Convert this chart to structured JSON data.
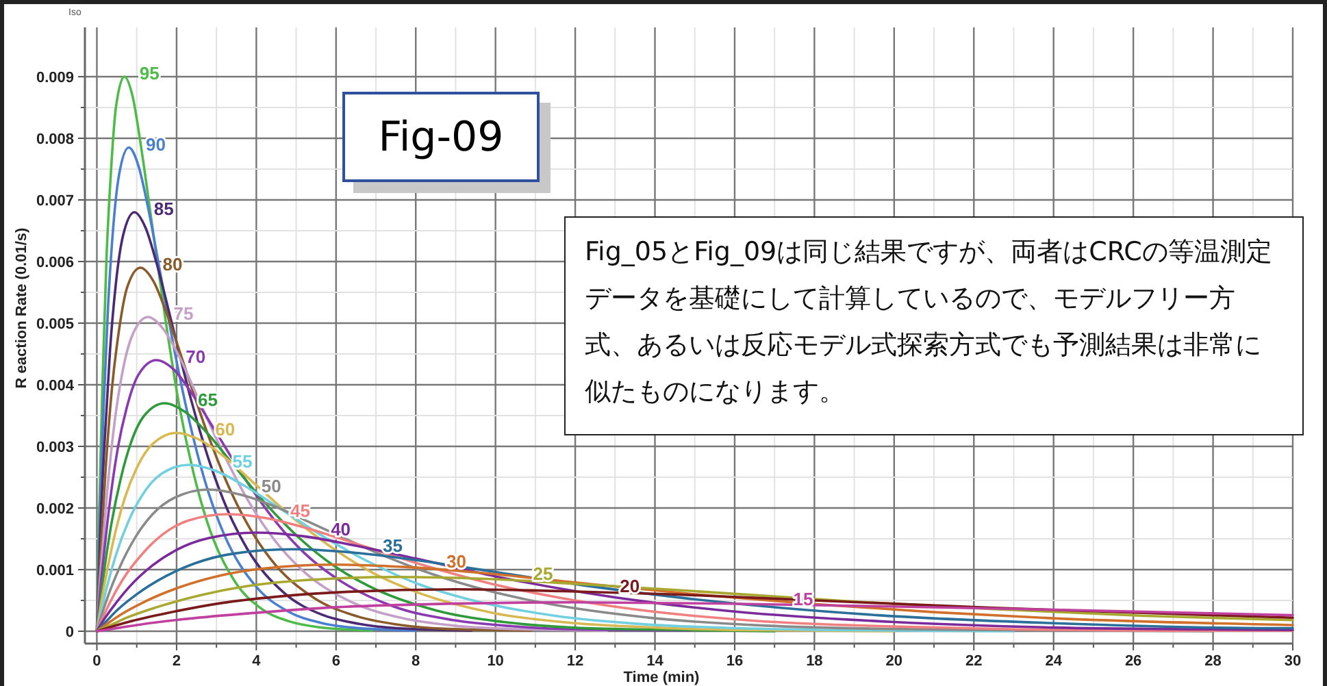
{
  "chart_data": {
    "type": "line",
    "xlabel": "Time (min)",
    "ylabel": "R eaction Rate (0.01/s)",
    "grid": true,
    "annotations": [
      "Iso",
      "Fig-09",
      "Fig_05とFig_09は同じ結果ですが、両者はCRCの等温測定データを基礎にして計算しているので、モデルフリー方式、あるいは反応モデル式探索方式でも予測結果は非常に似たものになります。"
    ],
    "xlim": [
      -0.3,
      30
    ],
    "ylim": [
      -0.0002,
      0.0098
    ],
    "xticks": [
      0,
      {
        "value": 1,
        "label": null
      },
      2,
      {
        "value": 3,
        "label": null
      },
      4,
      {
        "value": 5,
        "label": null
      },
      6,
      {
        "value": 7,
        "label": null
      },
      8,
      {
        "value": 9,
        "label": null
      },
      10,
      {
        "value": 11,
        "label": null
      },
      12,
      {
        "value": 13,
        "label": null
      },
      14,
      {
        "value": 15,
        "label": null
      },
      16,
      {
        "value": 17,
        "label": null
      },
      18,
      {
        "value": 19,
        "label": null
      },
      20,
      {
        "value": 21,
        "label": null
      },
      22,
      {
        "value": 23,
        "label": null
      },
      24,
      {
        "value": 25,
        "label": null
      },
      26,
      {
        "value": 27,
        "label": null
      },
      28,
      {
        "value": 29,
        "label": null
      },
      30
    ],
    "yticks": [
      0,
      {
        "value": 0.0005,
        "label": null
      },
      0.001,
      {
        "value": 0.0015,
        "label": null
      },
      0.002,
      {
        "value": 0.0025,
        "label": null
      },
      0.003,
      {
        "value": 0.0035,
        "label": null
      },
      0.004,
      {
        "value": 0.0045,
        "label": null
      },
      0.005,
      {
        "value": 0.0055,
        "label": null
      },
      0.006,
      {
        "value": 0.0065,
        "label": null
      },
      0.007,
      {
        "value": 0.0075,
        "label": null
      },
      0.008,
      {
        "value": 0.0085,
        "label": null
      },
      0.009
    ],
    "series": [
      {
        "name": "95",
        "color": "#4cbb47",
        "x": [
          0,
          0.03,
          0.07,
          0.14,
          0.24,
          0.35,
          0.48,
          0.69,
          0.9,
          1.1,
          1.38,
          1.73,
          2.07,
          2.42,
          2.76,
          3.45,
          4.14,
          4.83,
          5.52,
          6.9
        ],
        "values": [
          0,
          0.00116,
          0.00221,
          0.00401,
          0.00603,
          0.00742,
          0.00851,
          0.009,
          0.00867,
          0.0079,
          0.00662,
          0.00502,
          0.00365,
          0.00258,
          0.00179,
          0.00082,
          0.00036,
          0.00016,
          7e-05,
          1e-05
        ]
      },
      {
        "name": "90",
        "color": "#4a7fd0",
        "x": [
          0,
          0.04,
          0.08,
          0.16,
          0.28,
          0.4,
          0.56,
          0.8,
          1.04,
          1.28,
          1.6,
          2,
          2.4,
          2.8,
          3.2,
          4,
          4.8,
          5.6,
          6.4,
          8
        ],
        "values": [
          0,
          0.00101,
          0.00193,
          0.00349,
          0.00526,
          0.00647,
          0.00742,
          0.00785,
          0.00756,
          0.00689,
          0.00578,
          0.00438,
          0.00319,
          0.00225,
          0.00156,
          0.00072,
          0.00032,
          0.00014,
          6e-05,
          1e-05
        ]
      },
      {
        "name": "85",
        "color": "#4b2a73",
        "x": [
          0,
          0.05,
          0.09,
          0.19,
          0.33,
          0.47,
          0.66,
          0.94,
          1.22,
          1.5,
          1.88,
          2.35,
          2.82,
          3.29,
          3.76,
          4.7,
          5.64,
          6.58,
          7.52,
          9.4
        ],
        "values": [
          0,
          0.00088,
          0.00167,
          0.00303,
          0.00456,
          0.0056,
          0.00643,
          0.0068,
          0.00655,
          0.00597,
          0.005,
          0.00379,
          0.00276,
          0.00195,
          0.00135,
          0.00062,
          0.00027,
          0.00012,
          5e-05,
          1e-05
        ]
      },
      {
        "name": "80",
        "color": "#8b5a2b",
        "x": [
          0,
          0.05,
          0.11,
          0.22,
          0.38,
          0.55,
          0.76,
          1.09,
          1.42,
          1.74,
          2.18,
          2.73,
          3.27,
          3.82,
          4.36,
          5.45,
          6.54,
          7.63,
          8.72,
          10.9
        ],
        "values": [
          0,
          0.00076,
          0.00145,
          0.00263,
          0.00395,
          0.00486,
          0.00558,
          0.0059,
          0.00568,
          0.00518,
          0.00434,
          0.00329,
          0.0024,
          0.00169,
          0.00117,
          0.00054,
          0.00024,
          0.0001,
          4e-05,
          1e-05
        ]
      },
      {
        "name": "75",
        "color": "#c4a0c8",
        "x": [
          0,
          0.06,
          0.13,
          0.26,
          0.45,
          0.64,
          0.9,
          1.28,
          1.66,
          2.05,
          2.56,
          3.2,
          3.84,
          4.48,
          5.12,
          6.4,
          7.68,
          8.96,
          10.24,
          12.8
        ],
        "values": [
          0,
          0.00066,
          0.00125,
          0.00227,
          0.00342,
          0.0042,
          0.00482,
          0.0051,
          0.00491,
          0.00448,
          0.00375,
          0.00285,
          0.00207,
          0.00146,
          0.00101,
          0.00047,
          0.00021,
          9e-05,
          4e-05,
          1e-05
        ]
      },
      {
        "name": "70",
        "color": "#8a3ab0",
        "x": [
          0,
          0.07,
          0.15,
          0.3,
          0.52,
          0.75,
          1.04,
          1.49,
          1.94,
          2.38,
          2.98,
          3.73,
          4.47,
          5.22,
          5.96,
          7.45,
          8.94,
          10.43,
          11.92,
          14.9
        ],
        "values": [
          0,
          0.00057,
          0.00108,
          0.00196,
          0.00295,
          0.00363,
          0.00416,
          0.0044,
          0.00424,
          0.00386,
          0.00324,
          0.00246,
          0.00179,
          0.00126,
          0.00088,
          0.0004,
          0.00018,
          8e-05,
          3e-05,
          1e-05
        ]
      },
      {
        "name": "65",
        "color": "#2e9a3a",
        "x": [
          0,
          0.09,
          0.17,
          0.34,
          0.6,
          0.85,
          1.19,
          1.7,
          2.21,
          2.72,
          3.4,
          4.25,
          5.1,
          5.95,
          6.8,
          8.5,
          10.2,
          11.9,
          13.6,
          17
        ],
        "values": [
          0,
          0.00048,
          0.00091,
          0.00165,
          0.00248,
          0.00305,
          0.0035,
          0.0037,
          0.00356,
          0.00325,
          0.00272,
          0.00206,
          0.0015,
          0.00106,
          0.00074,
          0.00034,
          0.00015,
          6e-05,
          3e-05,
          0
        ]
      },
      {
        "name": "60",
        "color": "#d8b850",
        "x": [
          0,
          0.1,
          0.2,
          0.4,
          0.7,
          1,
          1.4,
          2,
          2.6,
          3.2,
          4,
          5,
          6,
          7,
          8,
          10,
          12,
          14,
          16,
          20
        ],
        "values": [
          0,
          0.00042,
          0.00079,
          0.00143,
          0.00216,
          0.00265,
          0.00304,
          0.00322,
          0.0031,
          0.00283,
          0.00237,
          0.0018,
          0.00131,
          0.00092,
          0.00064,
          0.00029,
          0.00013,
          6e-05,
          2e-05,
          0
        ]
      },
      {
        "name": "55",
        "color": "#70d0e0",
        "x": [
          0,
          0.12,
          0.23,
          0.46,
          0.81,
          1.15,
          1.61,
          2.3,
          2.99,
          3.68,
          4.6,
          5.75,
          6.9,
          8.05,
          9.2,
          11.5,
          13.8,
          16.1,
          18.4,
          23
        ],
        "values": [
          0,
          0.00035,
          0.00066,
          0.0012,
          0.00181,
          0.00222,
          0.00255,
          0.0027,
          0.0026,
          0.00237,
          0.00199,
          0.00151,
          0.0011,
          0.00077,
          0.00054,
          0.00025,
          0.00011,
          5e-05,
          2e-05,
          0
        ]
      },
      {
        "name": "50",
        "color": "#8a8a8a",
        "x": [
          0,
          0.14,
          0.28,
          0.56,
          0.98,
          1.4,
          1.96,
          2.8,
          3.64,
          4.48,
          5.6,
          7,
          8.4,
          9.8,
          11.2,
          14,
          16.8,
          19.6,
          22.4,
          28
        ],
        "values": [
          0,
          0.0003,
          0.00057,
          0.00102,
          0.00154,
          0.0019,
          0.00217,
          0.0023,
          0.00221,
          0.00202,
          0.00169,
          0.00128,
          0.00093,
          0.00066,
          0.00046,
          0.00021,
          9e-05,
          4e-05,
          2e-05,
          0
        ]
      },
      {
        "name": "45",
        "color": "#f08080",
        "x": [
          0,
          0.17,
          0.33,
          0.66,
          1.16,
          1.65,
          2.31,
          3.3,
          4.29,
          5.28,
          6.6,
          8.25,
          9.9,
          11.55,
          13.2,
          16.5,
          19.8,
          23.1,
          26.4,
          30
        ],
        "values": [
          0,
          0.00025,
          0.00047,
          0.00085,
          0.00127,
          0.00157,
          0.0018,
          0.0019,
          0.00183,
          0.00167,
          0.0014,
          0.00106,
          0.00077,
          0.00055,
          0.00038,
          0.00017,
          8e-05,
          3e-05,
          1e-05,
          1e-05
        ]
      },
      {
        "name": "40",
        "color": "#7a2a9a",
        "x": [
          0,
          0.2,
          0.4,
          0.8,
          1.4,
          2,
          2.8,
          4,
          5.2,
          6.4,
          8,
          10,
          12,
          14,
          16,
          20,
          24,
          28,
          30
        ],
        "values": [
          0,
          0.00021,
          0.00039,
          0.00071,
          0.00107,
          0.00132,
          0.00151,
          0.0016,
          0.00154,
          0.0014,
          0.00118,
          0.00089,
          0.00065,
          0.00046,
          0.00032,
          0.00015,
          6e-05,
          3e-05,
          2e-05
        ]
      },
      {
        "name": "35",
        "color": "#2a6e9a",
        "x": [
          0,
          0.25,
          0.49,
          0.98,
          1.72,
          2.45,
          3.43,
          4.9,
          6.37,
          7.84,
          9.8,
          12.25,
          14.7,
          17.15,
          19.6,
          24.5,
          29.4,
          30
        ],
        "values": [
          0,
          0.00017,
          0.00033,
          0.00059,
          0.00089,
          0.0011,
          0.00126,
          0.00133,
          0.00128,
          0.00117,
          0.00098,
          0.00074,
          0.00054,
          0.00038,
          0.00026,
          0.00012,
          5e-05,
          5e-05
        ]
      },
      {
        "name": "30",
        "color": "#d0702a",
        "x": [
          0,
          0.3,
          0.6,
          1.2,
          2.1,
          3,
          4.2,
          6,
          7.8,
          9.6,
          12,
          15,
          18,
          21,
          24,
          30
        ],
        "values": [
          0,
          0.00014,
          0.00027,
          0.00048,
          0.00072,
          0.00089,
          0.00102,
          0.00108,
          0.00104,
          0.00095,
          0.00079,
          0.0006,
          0.00044,
          0.00031,
          0.00021,
          0.0001
        ]
      },
      {
        "name": "25",
        "color": "#a8a830",
        "x": [
          0,
          0.38,
          0.75,
          1.5,
          2.63,
          3.75,
          5.25,
          7.5,
          9.75,
          12,
          15,
          18.75,
          22.5,
          26.25,
          30
        ],
        "values": [
          0,
          0.00011,
          0.00022,
          0.00039,
          0.00059,
          0.00073,
          0.00083,
          0.00088,
          0.00085,
          0.00077,
          0.00065,
          0.00049,
          0.00036,
          0.00025,
          0.00018
        ]
      },
      {
        "name": "20",
        "color": "#7a1a1a",
        "x": [
          0,
          0.45,
          0.9,
          1.8,
          3.15,
          4.5,
          6.3,
          9,
          11.7,
          14.4,
          18,
          22.5,
          27,
          30
        ],
        "values": [
          0,
          9e-05,
          0.00017,
          0.0003,
          0.00046,
          0.00056,
          0.00064,
          0.00068,
          0.00065,
          0.0006,
          0.0005,
          0.00038,
          0.00028,
          0.00022
        ]
      },
      {
        "name": "15",
        "color": "#c040a0",
        "x": [
          0,
          0.6,
          1.2,
          2.4,
          4.2,
          6,
          8.4,
          12,
          15.6,
          19.2,
          24,
          30
        ],
        "values": [
          0,
          6e-05,
          0.00012,
          0.00021,
          0.00031,
          0.00039,
          0.00044,
          0.00047,
          0.00045,
          0.00041,
          0.00035,
          0.00026
        ]
      }
    ]
  }
}
